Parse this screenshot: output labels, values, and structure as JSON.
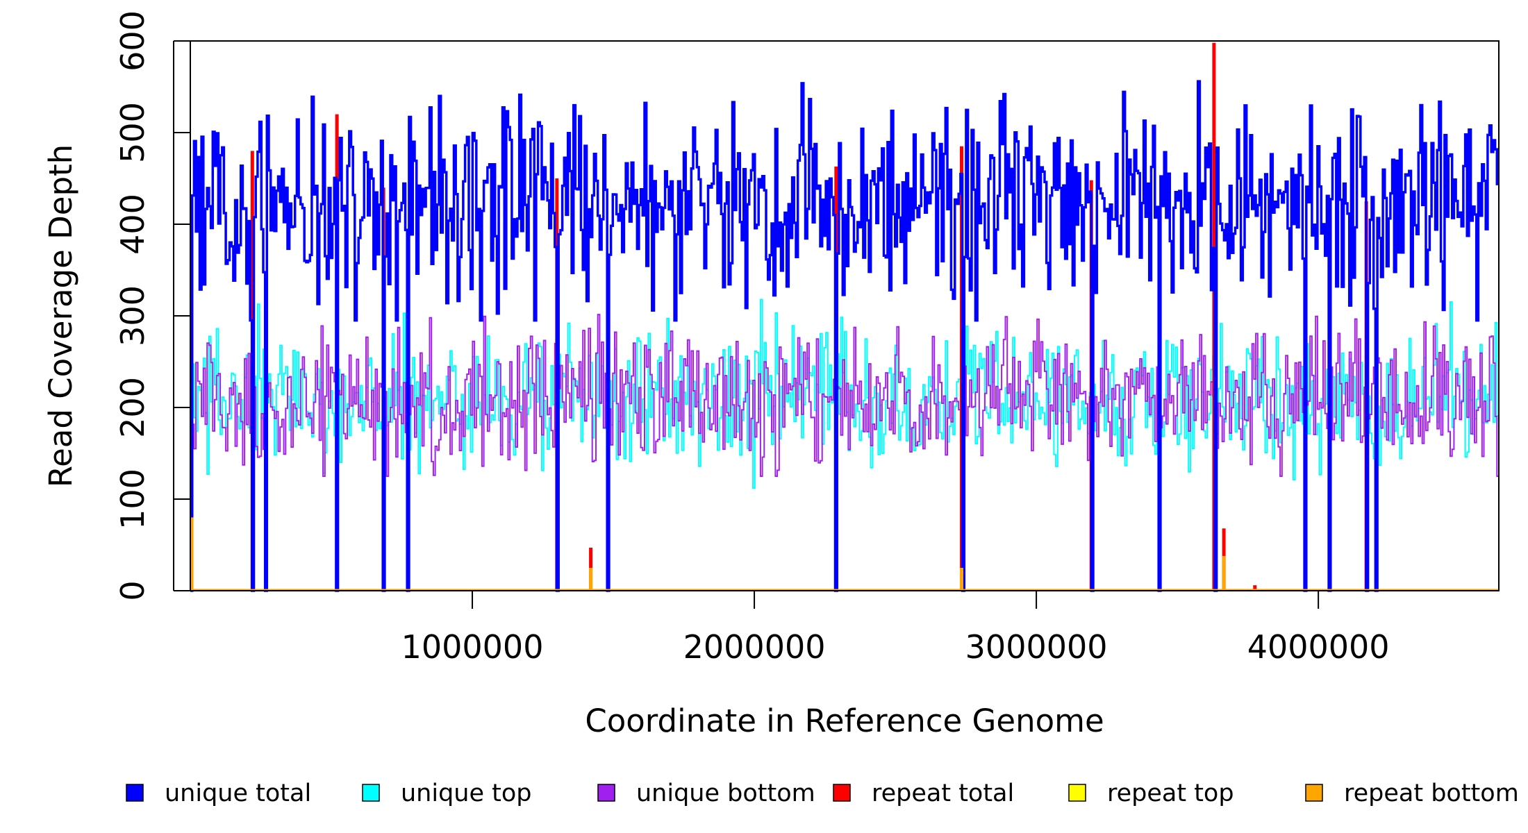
{
  "chart_data": {
    "type": "line",
    "title": "",
    "xlabel": "Coordinate in Reference Genome",
    "ylabel": "Read Coverage Depth",
    "xlim": [
      0,
      4640000
    ],
    "ylim": [
      0,
      600
    ],
    "x_ticks": [
      1000000,
      2000000,
      3000000,
      4000000
    ],
    "x_tick_labels": [
      "1000000",
      "2000000",
      "3000000",
      "4000000"
    ],
    "y_ticks": [
      0,
      100,
      200,
      300,
      400,
      500,
      600
    ],
    "y_tick_labels": [
      "0",
      "100",
      "200",
      "300",
      "400",
      "500",
      "600"
    ],
    "series": [
      {
        "name": "unique total",
        "color": "#0000ff",
        "mean": 420,
        "approx_range": [
          300,
          600
        ],
        "note": "step line; drops to 0 at dropout positions"
      },
      {
        "name": "unique top",
        "color": "#00ffff",
        "mean": 210,
        "approx_range": [
          110,
          320
        ]
      },
      {
        "name": "unique bottom",
        "color": "#a020f0",
        "mean": 210,
        "approx_range": [
          125,
          310
        ]
      },
      {
        "name": "repeat total",
        "color": "#ff0000",
        "mean": 0
      },
      {
        "name": "repeat top",
        "color": "#ffff00",
        "mean": 0
      },
      {
        "name": "repeat bottom",
        "color": "#ffa500",
        "mean": 0
      }
    ],
    "dropouts_x": [
      220000,
      265000,
      520000,
      685000,
      770000,
      1300000,
      1475000,
      2290000,
      2735000,
      3195000,
      3435000,
      3630000,
      3950000,
      4040000,
      4170000,
      4200000
    ],
    "repeat_total_spikes": [
      {
        "x": 5000,
        "y": 170
      },
      {
        "x": 1420000,
        "y": 47
      },
      {
        "x": 3665000,
        "y": 68
      },
      {
        "x": 3775000,
        "y": 6
      },
      {
        "x": 220000,
        "y": 480
      },
      {
        "x": 520000,
        "y": 520
      },
      {
        "x": 685000,
        "y": 440
      },
      {
        "x": 1300000,
        "y": 450
      },
      {
        "x": 2290000,
        "y": 463
      },
      {
        "x": 2735000,
        "y": 485
      },
      {
        "x": 3195000,
        "y": 448
      },
      {
        "x": 3630000,
        "y": 598
      },
      {
        "x": 4170000,
        "y": 425
      }
    ],
    "repeat_bottom_spikes": [
      {
        "x": 5000,
        "y": 80
      },
      {
        "x": 1420000,
        "y": 25
      },
      {
        "x": 2735000,
        "y": 25
      },
      {
        "x": 3665000,
        "y": 38
      }
    ],
    "legend_position": "bottom"
  }
}
